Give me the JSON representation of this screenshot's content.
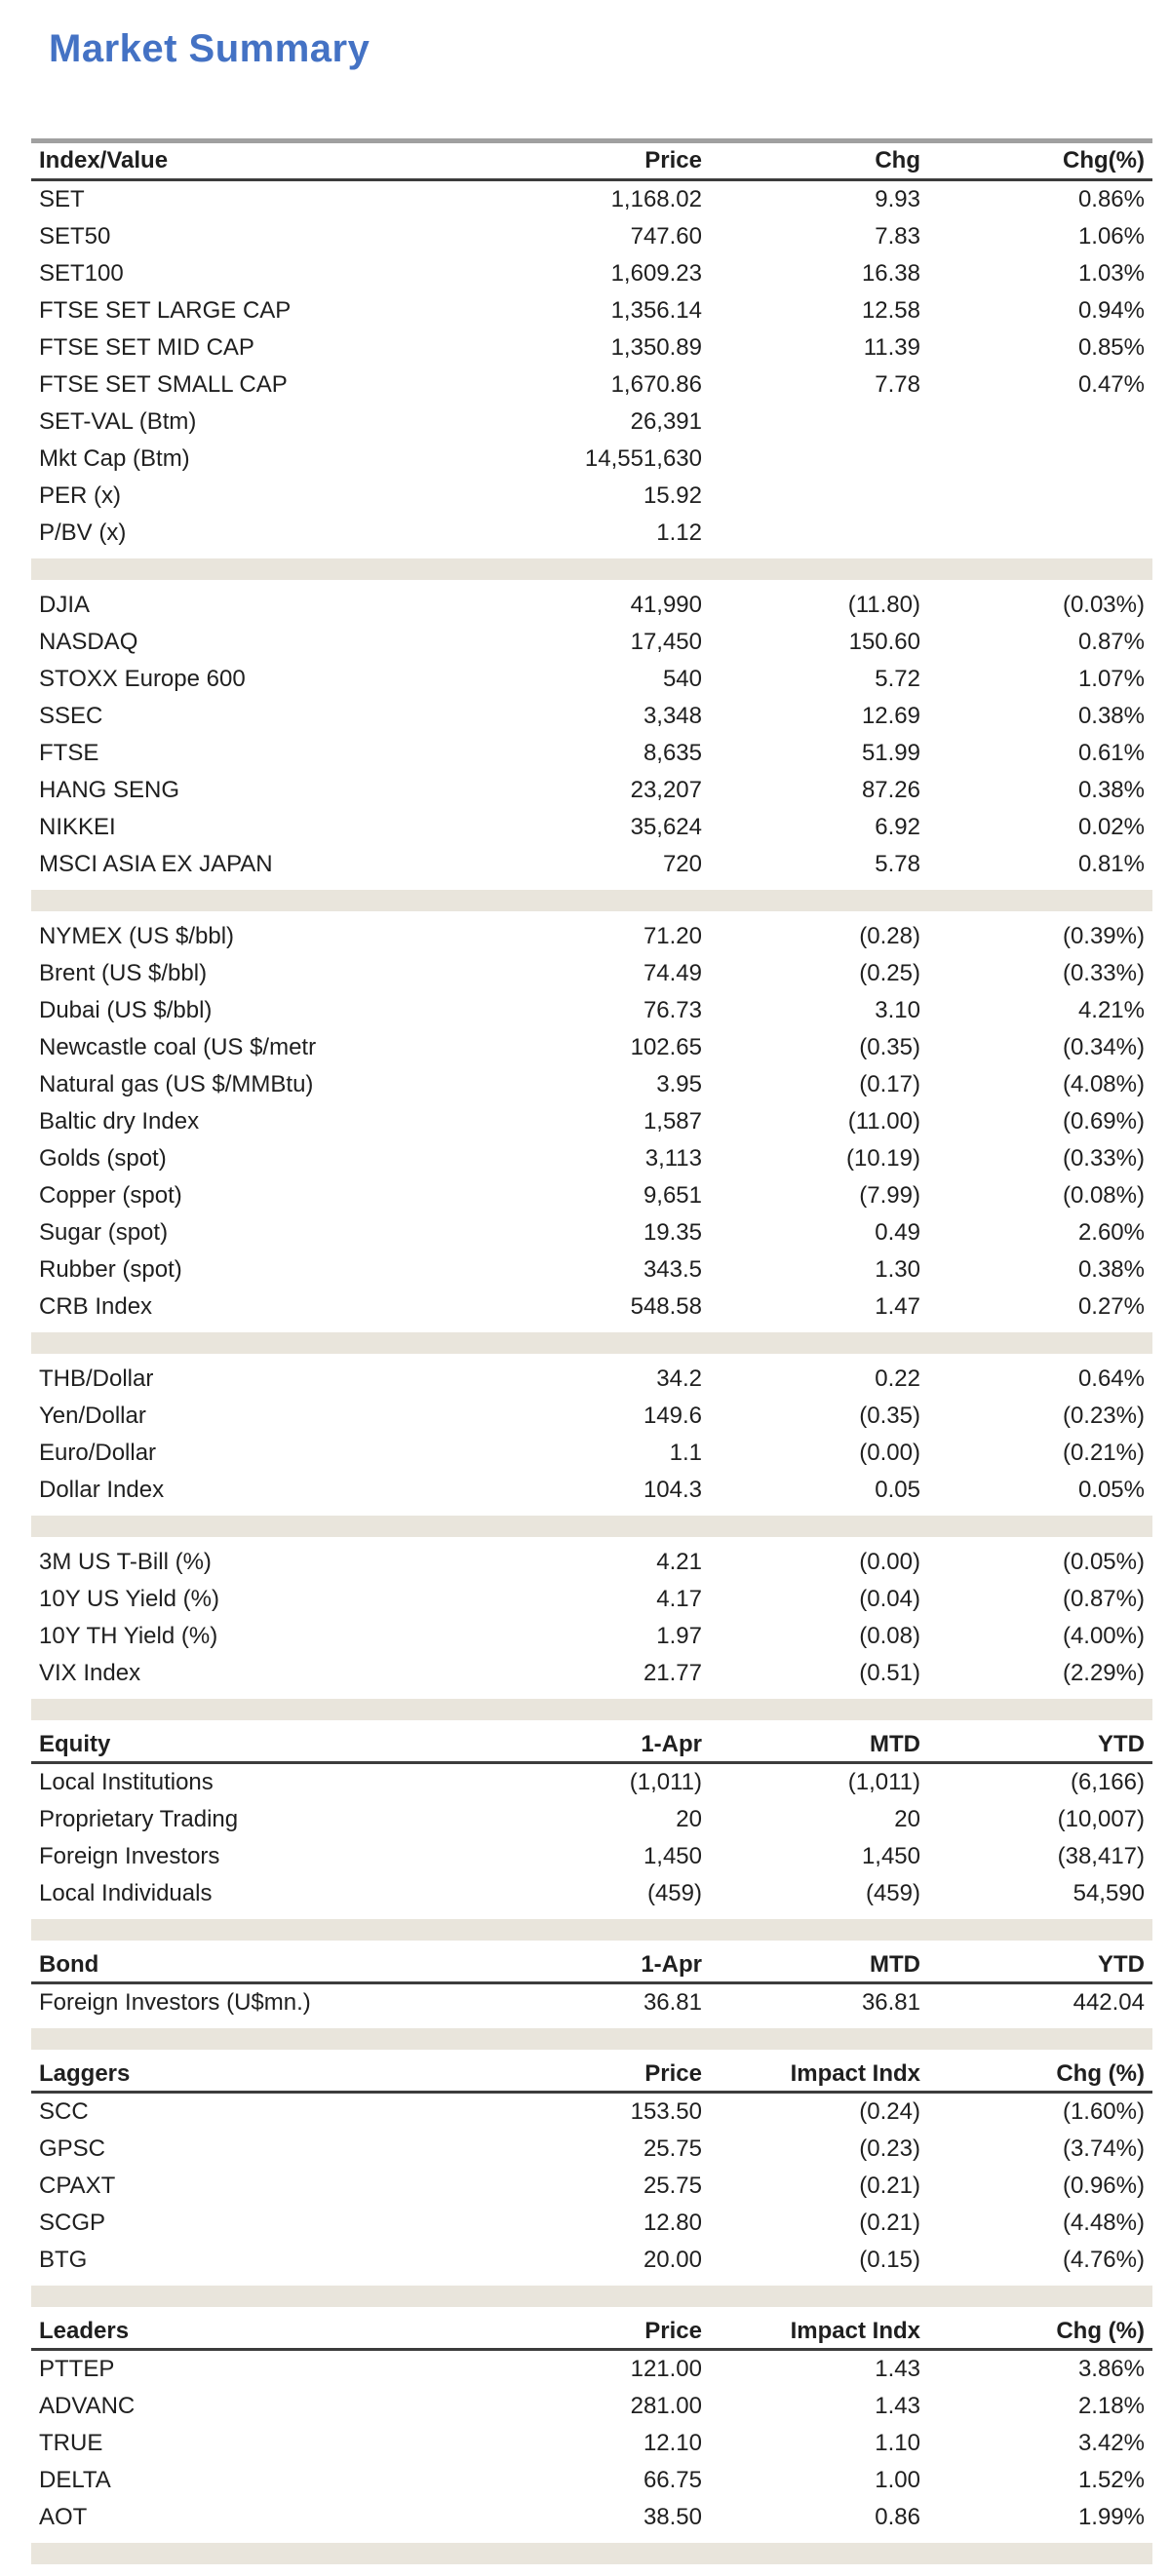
{
  "document": {
    "title": "Market Summary"
  },
  "colors": {
    "accent": "#4472c4",
    "band": "#e9e5dc",
    "text": "#1f1f1f",
    "rule_heavy": "#a0a0a0",
    "rule_dark": "#3c3c3c"
  },
  "table": {
    "sections": [
      {
        "kind": "head",
        "name": "index-value",
        "main": true,
        "cells": [
          "Index/Value",
          "Price",
          "Chg",
          "Chg(%)"
        ]
      },
      {
        "kind": "rows",
        "name": "thai-market",
        "rows": [
          [
            "SET",
            "1,168.02",
            "9.93",
            "0.86%"
          ],
          [
            "SET50",
            "747.60",
            "7.83",
            "1.06%"
          ],
          [
            "SET100",
            "1,609.23",
            "16.38",
            "1.03%"
          ],
          [
            "FTSE SET LARGE CAP",
            "1,356.14",
            "12.58",
            "0.94%"
          ],
          [
            "FTSE SET MID CAP",
            "1,350.89",
            "11.39",
            "0.85%"
          ],
          [
            "FTSE SET SMALL CAP",
            "1,670.86",
            "7.78",
            "0.47%"
          ],
          [
            "SET-VAL (Btm)",
            "26,391",
            "",
            ""
          ],
          [
            "Mkt Cap (Btm)",
            "14,551,630",
            "",
            ""
          ],
          [
            "PER (x)",
            "15.92",
            "",
            ""
          ],
          [
            "P/BV (x)",
            "1.12",
            "",
            ""
          ]
        ]
      },
      {
        "kind": "band"
      },
      {
        "kind": "rows",
        "name": "global-indices",
        "rows": [
          [
            "DJIA",
            "41,990",
            "(11.80)",
            "(0.03%)"
          ],
          [
            "NASDAQ",
            "17,450",
            "150.60",
            "0.87%"
          ],
          [
            "STOXX Europe 600",
            "540",
            "5.72",
            "1.07%"
          ],
          [
            "SSEC",
            "3,348",
            "12.69",
            "0.38%"
          ],
          [
            "FTSE",
            "8,635",
            "51.99",
            "0.61%"
          ],
          [
            "HANG SENG",
            "23,207",
            "87.26",
            "0.38%"
          ],
          [
            "NIKKEI",
            "35,624",
            "6.92",
            "0.02%"
          ],
          [
            "MSCI ASIA EX JAPAN",
            "720",
            "5.78",
            "0.81%"
          ]
        ]
      },
      {
        "kind": "band"
      },
      {
        "kind": "rows",
        "name": "commodities",
        "rows": [
          [
            "NYMEX (US $/bbl)",
            "71.20",
            "(0.28)",
            "(0.39%)"
          ],
          [
            "Brent (US $/bbl)",
            "74.49",
            "(0.25)",
            "(0.33%)"
          ],
          [
            "Dubai (US $/bbl)",
            "76.73",
            "3.10",
            "4.21%"
          ],
          [
            "Newcastle coal (US $/metr",
            "102.65",
            "(0.35)",
            "(0.34%)"
          ],
          [
            "Natural gas (US $/MMBtu)",
            "3.95",
            "(0.17)",
            "(4.08%)"
          ],
          [
            "Baltic dry Index",
            "1,587",
            "(11.00)",
            "(0.69%)"
          ],
          [
            "Golds (spot)",
            "3,113",
            "(10.19)",
            "(0.33%)"
          ],
          [
            "Copper (spot)",
            "9,651",
            "(7.99)",
            "(0.08%)"
          ],
          [
            "Sugar (spot)",
            "19.35",
            "0.49",
            "2.60%"
          ],
          [
            "Rubber (spot)",
            "343.5",
            "1.30",
            "0.38%"
          ],
          [
            "CRB Index",
            "548.58",
            "1.47",
            "0.27%"
          ]
        ]
      },
      {
        "kind": "band"
      },
      {
        "kind": "rows",
        "name": "currencies",
        "rows": [
          [
            "THB/Dollar",
            "34.2",
            "0.22",
            "0.64%"
          ],
          [
            "Yen/Dollar",
            "149.6",
            "(0.35)",
            "(0.23%)"
          ],
          [
            "Euro/Dollar",
            "1.1",
            "(0.00)",
            "(0.21%)"
          ],
          [
            "Dollar Index",
            "104.3",
            "0.05",
            "0.05%"
          ]
        ]
      },
      {
        "kind": "band"
      },
      {
        "kind": "rows",
        "name": "rates-volatility",
        "rows": [
          [
            "3M US T-Bill (%)",
            "4.21",
            "(0.00)",
            "(0.05%)"
          ],
          [
            "10Y US Yield (%)",
            "4.17",
            "(0.04)",
            "(0.87%)"
          ],
          [
            "10Y TH Yield (%)",
            "1.97",
            "(0.08)",
            "(4.00%)"
          ],
          [
            "VIX Index",
            "21.77",
            "(0.51)",
            "(2.29%)"
          ]
        ]
      },
      {
        "kind": "band"
      },
      {
        "kind": "head",
        "name": "equity-flows",
        "cells": [
          "Equity",
          "1-Apr",
          "MTD",
          "YTD"
        ]
      },
      {
        "kind": "rows",
        "name": "equity-fund-flows",
        "rows": [
          [
            "Local Institutions",
            "(1,011)",
            "(1,011)",
            "(6,166)"
          ],
          [
            "Proprietary Trading",
            "20",
            "20",
            "(10,007)"
          ],
          [
            "Foreign Investors",
            "1,450",
            "1,450",
            "(38,417)"
          ],
          [
            "Local Individuals",
            "(459)",
            "(459)",
            "54,590"
          ]
        ]
      },
      {
        "kind": "band"
      },
      {
        "kind": "head",
        "name": "bond-flows",
        "cells": [
          "Bond",
          "1-Apr",
          "MTD",
          "YTD"
        ]
      },
      {
        "kind": "rows",
        "name": "bond-fund-flows",
        "rows": [
          [
            "Foreign Investors (U$mn.)",
            "36.81",
            "36.81",
            "442.04"
          ]
        ]
      },
      {
        "kind": "band"
      },
      {
        "kind": "head",
        "name": "laggers",
        "cells": [
          "Laggers",
          "Price",
          "Impact Indx",
          "Chg (%)"
        ]
      },
      {
        "kind": "rows",
        "name": "laggers-stocks",
        "rows": [
          [
            "SCC",
            "153.50",
            "(0.24)",
            "(1.60%)"
          ],
          [
            "GPSC",
            "25.75",
            "(0.23)",
            "(3.74%)"
          ],
          [
            "CPAXT",
            "25.75",
            "(0.21)",
            "(0.96%)"
          ],
          [
            "SCGP",
            "12.80",
            "(0.21)",
            "(4.48%)"
          ],
          [
            "BTG",
            "20.00",
            "(0.15)",
            "(4.76%)"
          ]
        ]
      },
      {
        "kind": "band"
      },
      {
        "kind": "head",
        "name": "leaders",
        "cells": [
          "Leaders",
          "Price",
          "Impact Indx",
          "Chg (%)"
        ]
      },
      {
        "kind": "rows",
        "name": "leaders-stocks",
        "rows": [
          [
            "PTTEP",
            "121.00",
            "1.43",
            "3.86%"
          ],
          [
            "ADVANC",
            "281.00",
            "1.43",
            "2.18%"
          ],
          [
            "TRUE",
            "12.10",
            "1.10",
            "3.42%"
          ],
          [
            "DELTA",
            "66.75",
            "1.00",
            "1.52%"
          ],
          [
            "AOT",
            "38.50",
            "0.86",
            "1.99%"
          ]
        ]
      },
      {
        "kind": "band"
      }
    ]
  }
}
